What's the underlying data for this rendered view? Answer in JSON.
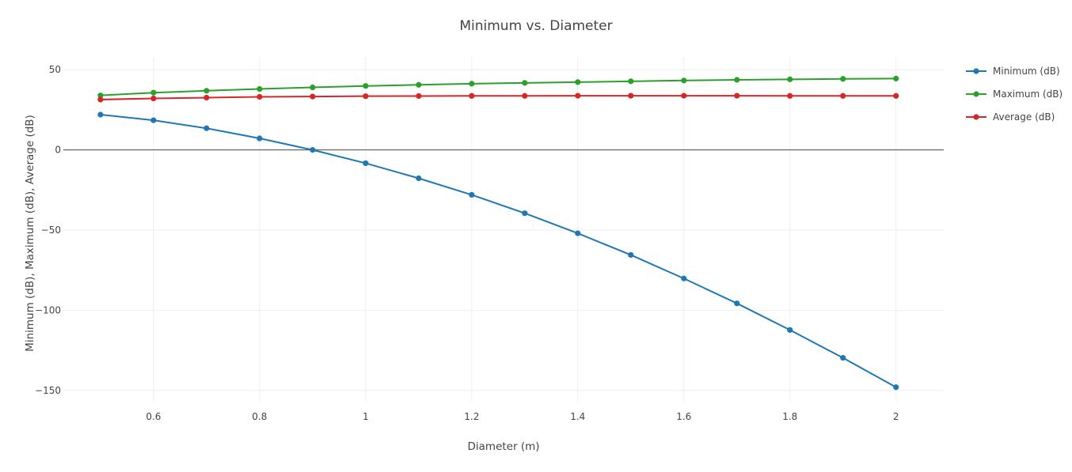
{
  "chart_data": {
    "type": "line",
    "title": "Minimum vs. Diameter",
    "xlabel": "Diameter (m)",
    "ylabel": "Minimum (dB), Maximum (dB), Average (dB)",
    "xlim": [
      0.43,
      2.09
    ],
    "ylim": [
      -157,
      58
    ],
    "x_ticks": [
      0.6,
      0.8,
      1.0,
      1.2,
      1.4,
      1.6,
      1.8,
      2.0
    ],
    "x_tick_labels": [
      "0.6",
      "0.8",
      "1",
      "1.2",
      "1.4",
      "1.6",
      "1.8",
      "2"
    ],
    "y_ticks": [
      50,
      0,
      -50,
      -100,
      -150
    ],
    "y_tick_labels": [
      "50",
      "0",
      "−50",
      "−100",
      "−150"
    ],
    "grid": true,
    "legend_position": "right",
    "x": [
      0.5,
      0.6,
      0.7,
      0.8,
      0.9,
      1.0,
      1.1,
      1.2,
      1.3,
      1.4,
      1.5,
      1.6,
      1.7,
      1.8,
      1.9,
      2.0
    ],
    "series": [
      {
        "name": "Minimum (dB)",
        "color": "#1f77b4",
        "values": [
          22,
          18.5,
          13.5,
          7.2,
          0,
          -8.3,
          -17.7,
          -28,
          -39.5,
          -52,
          -65.5,
          -80.2,
          -95.7,
          -112.3,
          -129.7,
          -148
        ]
      },
      {
        "name": "Maximum (dB)",
        "color": "#2ca02c",
        "values": [
          34,
          35.7,
          36.9,
          38,
          39,
          39.9,
          40.6,
          41.3,
          41.8,
          42.3,
          42.8,
          43.3,
          43.7,
          44,
          44.3,
          44.5
        ]
      },
      {
        "name": "Average (dB)",
        "color": "#d62728",
        "values": [
          31.4,
          32.1,
          32.6,
          33.1,
          33.3,
          33.5,
          33.6,
          33.7,
          33.7,
          33.8,
          33.8,
          33.8,
          33.8,
          33.7,
          33.7,
          33.7
        ]
      }
    ]
  }
}
